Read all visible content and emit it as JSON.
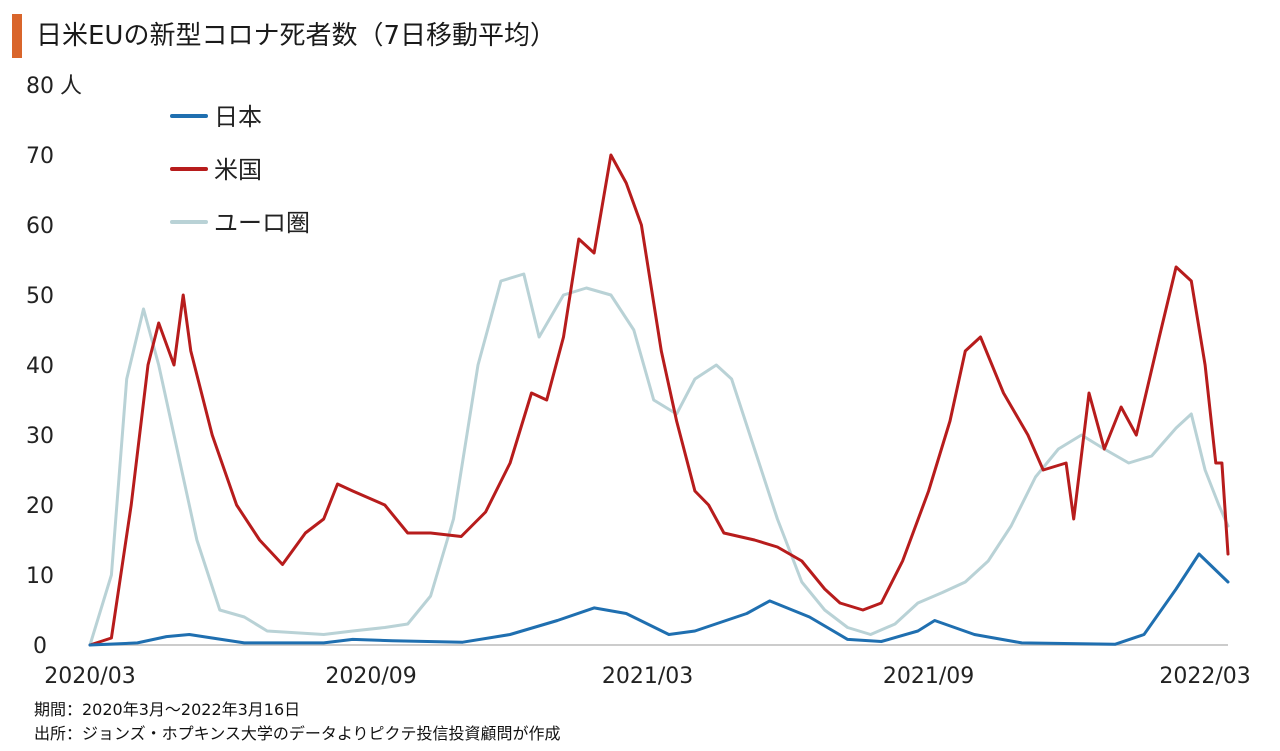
{
  "title": "日米EUの新型コロナ死者数（7日移動平均）",
  "colors": {
    "accent": "#d9652b",
    "japan": "#1f6fb0",
    "us": "#b71c1c",
    "euro": "#b9d2d6",
    "axis": "#bbbbbb"
  },
  "notes": {
    "period": "期間：2020年3月～2022年3月16日",
    "source": "出所：ジョンズ・ホプキンス大学のデータよりピクテ投信投資顧問が作成"
  },
  "chart_data": {
    "type": "line",
    "title": "日米EUの新型コロナ死者数（7日移動平均）",
    "ylabel": "人",
    "y_ticks": [
      0,
      10,
      20,
      30,
      40,
      50,
      60,
      70,
      80
    ],
    "ylim": [
      0,
      80
    ],
    "x_ticks": [
      "2020/03",
      "2020/09",
      "2021/03",
      "2021/09",
      "2022/03"
    ],
    "xlim": [
      "2020-03-01",
      "2022-03-16"
    ],
    "grid": false,
    "legend_position": "top-left",
    "series": [
      {
        "name": "日本",
        "color": "#1f6fb0",
        "points": [
          [
            "2020-03-01",
            0
          ],
          [
            "2020-04-01",
            0.3
          ],
          [
            "2020-04-20",
            1.2
          ],
          [
            "2020-05-05",
            1.5
          ],
          [
            "2020-05-20",
            1
          ],
          [
            "2020-06-10",
            0.3
          ],
          [
            "2020-08-01",
            0.3
          ],
          [
            "2020-08-20",
            0.8
          ],
          [
            "2020-09-15",
            0.6
          ],
          [
            "2020-10-31",
            0.4
          ],
          [
            "2020-12-01",
            1.5
          ],
          [
            "2021-01-01",
            3.5
          ],
          [
            "2021-01-25",
            5.3
          ],
          [
            "2021-02-15",
            4.5
          ],
          [
            "2021-03-15",
            1.5
          ],
          [
            "2021-04-01",
            2
          ],
          [
            "2021-05-05",
            4.5
          ],
          [
            "2021-05-20",
            6.3
          ],
          [
            "2021-06-15",
            4
          ],
          [
            "2021-07-10",
            0.8
          ],
          [
            "2021-08-01",
            0.5
          ],
          [
            "2021-08-25",
            2
          ],
          [
            "2021-09-05",
            3.5
          ],
          [
            "2021-10-01",
            1.5
          ],
          [
            "2021-11-01",
            0.3
          ],
          [
            "2022-01-01",
            0.1
          ],
          [
            "2022-01-20",
            1.5
          ],
          [
            "2022-02-10",
            8
          ],
          [
            "2022-02-25",
            13
          ],
          [
            "2022-03-16",
            9
          ]
        ]
      },
      {
        "name": "米国",
        "color": "#b71c1c",
        "points": [
          [
            "2020-03-01",
            0
          ],
          [
            "2020-03-15",
            1
          ],
          [
            "2020-03-28",
            20
          ],
          [
            "2020-04-08",
            40
          ],
          [
            "2020-04-15",
            46
          ],
          [
            "2020-04-25",
            40
          ],
          [
            "2020-05-01",
            50
          ],
          [
            "2020-05-06",
            42
          ],
          [
            "2020-05-20",
            30
          ],
          [
            "2020-06-05",
            20
          ],
          [
            "2020-06-20",
            15
          ],
          [
            "2020-07-05",
            11.5
          ],
          [
            "2020-07-20",
            16
          ],
          [
            "2020-08-01",
            18
          ],
          [
            "2020-08-10",
            23
          ],
          [
            "2020-08-20",
            22
          ],
          [
            "2020-09-10",
            20
          ],
          [
            "2020-09-25",
            16
          ],
          [
            "2020-10-10",
            16
          ],
          [
            "2020-10-30",
            15.5
          ],
          [
            "2020-11-15",
            19
          ],
          [
            "2020-12-01",
            26
          ],
          [
            "2020-12-15",
            36
          ],
          [
            "2020-12-25",
            35
          ],
          [
            "2021-01-05",
            44
          ],
          [
            "2021-01-15",
            58
          ],
          [
            "2021-01-25",
            56
          ],
          [
            "2021-02-05",
            70
          ],
          [
            "2021-02-15",
            66
          ],
          [
            "2021-02-25",
            60
          ],
          [
            "2021-03-10",
            42
          ],
          [
            "2021-03-20",
            32
          ],
          [
            "2021-04-01",
            22
          ],
          [
            "2021-04-10",
            20
          ],
          [
            "2021-04-20",
            16
          ],
          [
            "2021-05-10",
            15
          ],
          [
            "2021-05-25",
            14
          ],
          [
            "2021-06-10",
            12
          ],
          [
            "2021-06-25",
            8
          ],
          [
            "2021-07-05",
            6
          ],
          [
            "2021-07-20",
            5
          ],
          [
            "2021-08-01",
            6
          ],
          [
            "2021-08-15",
            12
          ],
          [
            "2021-09-01",
            22
          ],
          [
            "2021-09-15",
            32
          ],
          [
            "2021-09-25",
            42
          ],
          [
            "2021-10-05",
            44
          ],
          [
            "2021-10-20",
            36
          ],
          [
            "2021-11-05",
            30
          ],
          [
            "2021-11-15",
            25
          ],
          [
            "2021-11-30",
            26
          ],
          [
            "2021-12-05",
            18
          ],
          [
            "2021-12-15",
            36
          ],
          [
            "2021-12-25",
            28
          ],
          [
            "2022-01-05",
            34
          ],
          [
            "2022-01-15",
            30
          ],
          [
            "2022-01-30",
            44
          ],
          [
            "2022-02-10",
            54
          ],
          [
            "2022-02-20",
            52
          ],
          [
            "2022-03-01",
            40
          ],
          [
            "2022-03-08",
            26
          ],
          [
            "2022-03-12",
            26
          ],
          [
            "2022-03-16",
            13
          ]
        ]
      },
      {
        "name": "ユーロ圏",
        "color": "#b9d2d6",
        "points": [
          [
            "2020-03-01",
            0
          ],
          [
            "2020-03-15",
            10
          ],
          [
            "2020-03-25",
            38
          ],
          [
            "2020-04-05",
            48
          ],
          [
            "2020-04-15",
            40
          ],
          [
            "2020-04-25",
            30
          ],
          [
            "2020-05-10",
            15
          ],
          [
            "2020-05-25",
            5
          ],
          [
            "2020-06-10",
            4
          ],
          [
            "2020-06-25",
            2
          ],
          [
            "2020-08-01",
            1.5
          ],
          [
            "2020-08-20",
            2
          ],
          [
            "2020-09-10",
            2.5
          ],
          [
            "2020-09-25",
            3
          ],
          [
            "2020-10-10",
            7
          ],
          [
            "2020-10-25",
            18
          ],
          [
            "2020-11-10",
            40
          ],
          [
            "2020-11-25",
            52
          ],
          [
            "2020-12-10",
            53
          ],
          [
            "2020-12-20",
            44
          ],
          [
            "2021-01-05",
            50
          ],
          [
            "2021-01-20",
            51
          ],
          [
            "2021-02-05",
            50
          ],
          [
            "2021-02-20",
            45
          ],
          [
            "2021-03-05",
            35
          ],
          [
            "2021-03-20",
            33
          ],
          [
            "2021-04-01",
            38
          ],
          [
            "2021-04-15",
            40
          ],
          [
            "2021-04-25",
            38
          ],
          [
            "2021-05-10",
            28
          ],
          [
            "2021-05-25",
            18
          ],
          [
            "2021-06-10",
            9
          ],
          [
            "2021-06-25",
            5
          ],
          [
            "2021-07-10",
            2.5
          ],
          [
            "2021-07-25",
            1.5
          ],
          [
            "2021-08-10",
            3
          ],
          [
            "2021-08-25",
            6
          ],
          [
            "2021-09-10",
            7.5
          ],
          [
            "2021-09-25",
            9
          ],
          [
            "2021-10-10",
            12
          ],
          [
            "2021-10-25",
            17
          ],
          [
            "2021-11-10",
            24
          ],
          [
            "2021-11-25",
            28
          ],
          [
            "2021-12-10",
            30
          ],
          [
            "2021-12-25",
            28
          ],
          [
            "2022-01-10",
            26
          ],
          [
            "2022-01-25",
            27
          ],
          [
            "2022-02-10",
            31
          ],
          [
            "2022-02-20",
            33
          ],
          [
            "2022-03-01",
            25
          ],
          [
            "2022-03-10",
            20
          ],
          [
            "2022-03-16",
            17
          ]
        ]
      }
    ]
  }
}
